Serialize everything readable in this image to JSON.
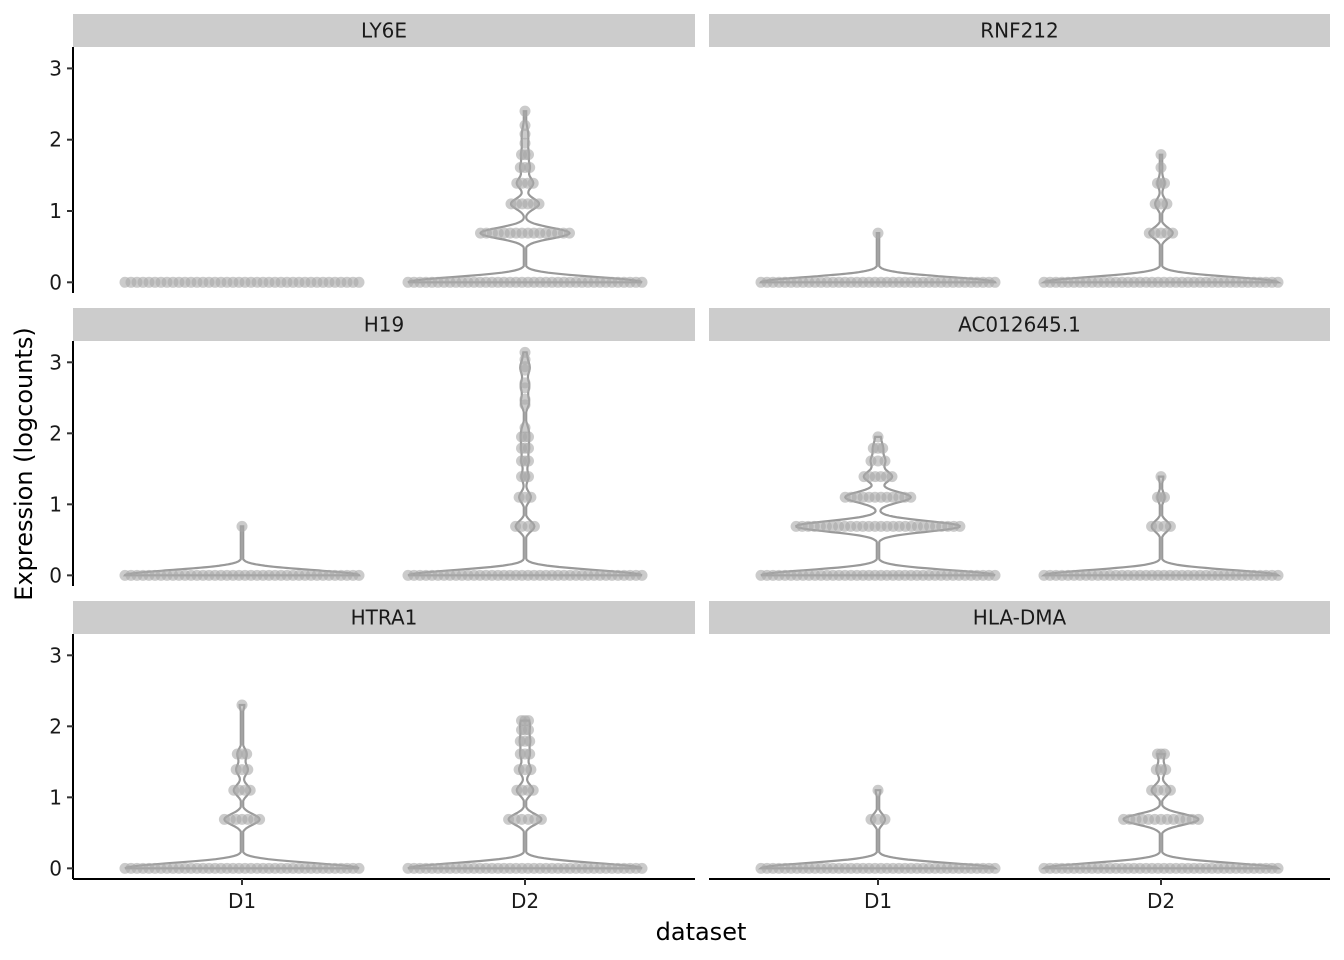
{
  "chart_data": {
    "type": "violin",
    "xlabel": "dataset",
    "ylabel": "Expression (logcounts)",
    "categories": [
      "D1",
      "D2"
    ],
    "ylim": [
      -0.15,
      3.3
    ],
    "yticks": [
      0,
      1,
      2,
      3
    ],
    "grid": false,
    "colors": {
      "strip": "#cccccc",
      "violin_outline": "#999999",
      "points": "#a9a9a9"
    },
    "panels": [
      {
        "gene": "LY6E",
        "groups": [
          {
            "category": "D1",
            "levels": [
              {
                "y": 0,
                "rel_width": 1.0
              }
            ]
          },
          {
            "category": "D2",
            "levels": [
              {
                "y": 0,
                "rel_width": 1.0
              },
              {
                "y": 0.69,
                "rel_width": 0.38
              },
              {
                "y": 1.1,
                "rel_width": 0.12
              },
              {
                "y": 1.39,
                "rel_width": 0.07
              },
              {
                "y": 1.61,
                "rel_width": 0.04
              },
              {
                "y": 1.79,
                "rel_width": 0.03
              },
              {
                "y": 1.95,
                "rel_width": 0.02
              },
              {
                "y": 2.08,
                "rel_width": 0.02
              },
              {
                "y": 2.2,
                "rel_width": 0.01
              },
              {
                "y": 2.4,
                "rel_width": 0.01
              }
            ]
          }
        ]
      },
      {
        "gene": "RNF212",
        "groups": [
          {
            "category": "D1",
            "levels": [
              {
                "y": 0,
                "rel_width": 1.0
              },
              {
                "y": 0.69,
                "rel_width": 0.01
              }
            ]
          },
          {
            "category": "D2",
            "levels": [
              {
                "y": 0,
                "rel_width": 1.0
              },
              {
                "y": 0.69,
                "rel_width": 0.1
              },
              {
                "y": 1.1,
                "rel_width": 0.05
              },
              {
                "y": 1.39,
                "rel_width": 0.03
              },
              {
                "y": 1.61,
                "rel_width": 0.01
              },
              {
                "y": 1.79,
                "rel_width": 0.01
              }
            ]
          }
        ]
      },
      {
        "gene": "H19",
        "groups": [
          {
            "category": "D1",
            "levels": [
              {
                "y": 0,
                "rel_width": 1.0
              },
              {
                "y": 0.69,
                "rel_width": 0.01
              }
            ]
          },
          {
            "category": "D2",
            "levels": [
              {
                "y": 0,
                "rel_width": 1.0
              },
              {
                "y": 0.69,
                "rel_width": 0.08
              },
              {
                "y": 1.1,
                "rel_width": 0.05
              },
              {
                "y": 1.39,
                "rel_width": 0.03
              },
              {
                "y": 1.61,
                "rel_width": 0.03
              },
              {
                "y": 1.79,
                "rel_width": 0.03
              },
              {
                "y": 1.95,
                "rel_width": 0.03
              },
              {
                "y": 2.08,
                "rel_width": 0.02
              },
              {
                "y": 2.4,
                "rel_width": 0.02
              },
              {
                "y": 2.48,
                "rel_width": 0.02
              },
              {
                "y": 2.64,
                "rel_width": 0.02
              },
              {
                "y": 2.71,
                "rel_width": 0.02
              },
              {
                "y": 2.89,
                "rel_width": 0.02
              },
              {
                "y": 2.94,
                "rel_width": 0.02
              },
              {
                "y": 3.04,
                "rel_width": 0.01
              },
              {
                "y": 3.14,
                "rel_width": 0.01
              }
            ]
          }
        ]
      },
      {
        "gene": "AC012645.1",
        "groups": [
          {
            "category": "D1",
            "levels": [
              {
                "y": 0,
                "rel_width": 1.0
              },
              {
                "y": 0.69,
                "rel_width": 0.7
              },
              {
                "y": 1.1,
                "rel_width": 0.28
              },
              {
                "y": 1.39,
                "rel_width": 0.12
              },
              {
                "y": 1.61,
                "rel_width": 0.06
              },
              {
                "y": 1.79,
                "rel_width": 0.04
              },
              {
                "y": 1.95,
                "rel_width": 0.02
              }
            ]
          },
          {
            "category": "D2",
            "levels": [
              {
                "y": 0,
                "rel_width": 1.0
              },
              {
                "y": 0.69,
                "rel_width": 0.08
              },
              {
                "y": 1.1,
                "rel_width": 0.03
              },
              {
                "y": 1.39,
                "rel_width": 0.02
              }
            ]
          }
        ]
      },
      {
        "gene": "HTRA1",
        "groups": [
          {
            "category": "D1",
            "levels": [
              {
                "y": 0,
                "rel_width": 1.0
              },
              {
                "y": 0.69,
                "rel_width": 0.15
              },
              {
                "y": 1.1,
                "rel_width": 0.07
              },
              {
                "y": 1.39,
                "rel_width": 0.05
              },
              {
                "y": 1.61,
                "rel_width": 0.04
              },
              {
                "y": 2.3,
                "rel_width": 0.02
              }
            ]
          },
          {
            "category": "D2",
            "levels": [
              {
                "y": 0,
                "rel_width": 1.0
              },
              {
                "y": 0.69,
                "rel_width": 0.14
              },
              {
                "y": 1.1,
                "rel_width": 0.07
              },
              {
                "y": 1.39,
                "rel_width": 0.05
              },
              {
                "y": 1.61,
                "rel_width": 0.04
              },
              {
                "y": 1.79,
                "rel_width": 0.04
              },
              {
                "y": 1.95,
                "rel_width": 0.03
              },
              {
                "y": 2.08,
                "rel_width": 0.03
              }
            ]
          }
        ]
      },
      {
        "gene": "HLA-DMA",
        "groups": [
          {
            "category": "D1",
            "levels": [
              {
                "y": 0,
                "rel_width": 1.0
              },
              {
                "y": 0.69,
                "rel_width": 0.06
              },
              {
                "y": 1.1,
                "rel_width": 0.02
              }
            ]
          },
          {
            "category": "D2",
            "levels": [
              {
                "y": 0,
                "rel_width": 1.0
              },
              {
                "y": 0.69,
                "rel_width": 0.32
              },
              {
                "y": 1.1,
                "rel_width": 0.08
              },
              {
                "y": 1.39,
                "rel_width": 0.04
              },
              {
                "y": 1.61,
                "rel_width": 0.03
              }
            ]
          }
        ]
      }
    ]
  }
}
